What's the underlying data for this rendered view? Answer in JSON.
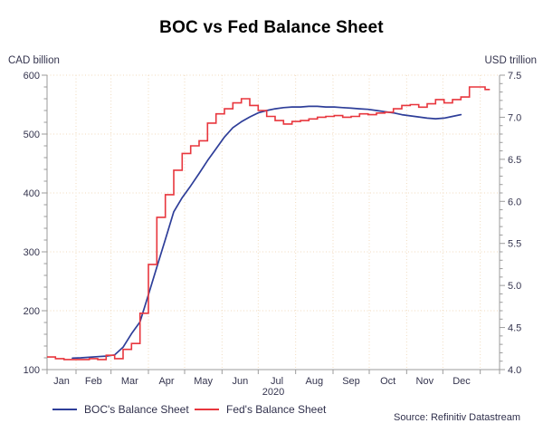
{
  "title": "BOC vs Fed Balance Sheet",
  "left_axis": {
    "label": "CAD billion",
    "min": 100,
    "max": 600,
    "major_step": 100,
    "minor_step": 20
  },
  "right_axis": {
    "label": "USD trillion",
    "min": 4.0,
    "max": 7.5,
    "major_step": 0.5,
    "minor_step": 0.1
  },
  "x_axis": {
    "months": [
      "Jan",
      "Feb",
      "Mar",
      "Apr",
      "May",
      "Jun",
      "Jul",
      "Aug",
      "Sep",
      "Oct",
      "Nov",
      "Dec"
    ],
    "year": "2020"
  },
  "legend": [
    {
      "label": "BOC's Balance Sheet",
      "color": "#2e3e99"
    },
    {
      "label": "Fed's Balance Sheet",
      "color": "#e8363d"
    }
  ],
  "source": "Source: Refinitiv Datastream",
  "colors": {
    "grid": "#f0dabd",
    "axis": "#9b9b9b",
    "tick_text": "#34344e",
    "title": "#000000",
    "background": "#ffffff"
  },
  "chart_data": {
    "type": "line",
    "title": "BOC vs Fed Balance Sheet",
    "x_unit": "day of year 2020 (weekly observations)",
    "x_range_days": [
      8,
      375
    ],
    "left_axis": {
      "label": "CAD billion",
      "range": [
        100,
        600
      ]
    },
    "right_axis": {
      "label": "USD trillion",
      "range": [
        4.0,
        7.5
      ]
    },
    "grid": true,
    "legend_position": "bottom",
    "series": [
      {
        "name": "BOC's Balance Sheet",
        "axis": "left",
        "unit": "CAD billion",
        "color": "#2e3e99",
        "line_style": "linear",
        "points": [
          [
            29,
            119.5
          ],
          [
            36,
            120
          ],
          [
            43,
            121
          ],
          [
            50,
            122
          ],
          [
            57,
            123
          ],
          [
            64,
            125
          ],
          [
            71,
            138
          ],
          [
            78,
            161
          ],
          [
            85,
            181
          ],
          [
            92,
            227
          ],
          [
            99,
            274
          ],
          [
            106,
            321
          ],
          [
            113,
            368
          ],
          [
            120,
            392
          ],
          [
            127,
            412
          ],
          [
            134,
            433
          ],
          [
            141,
            455
          ],
          [
            148,
            475
          ],
          [
            155,
            495
          ],
          [
            162,
            511
          ],
          [
            169,
            521
          ],
          [
            176,
            529
          ],
          [
            183,
            536
          ],
          [
            190,
            540
          ],
          [
            197,
            543
          ],
          [
            204,
            545
          ],
          [
            211,
            546
          ],
          [
            218,
            546
          ],
          [
            225,
            547
          ],
          [
            232,
            547
          ],
          [
            239,
            546
          ],
          [
            246,
            546
          ],
          [
            253,
            545
          ],
          [
            260,
            544
          ],
          [
            267,
            543
          ],
          [
            274,
            542
          ],
          [
            281,
            540
          ],
          [
            288,
            538
          ],
          [
            295,
            536
          ],
          [
            302,
            533
          ],
          [
            309,
            531
          ],
          [
            316,
            529
          ],
          [
            323,
            527
          ],
          [
            330,
            526
          ],
          [
            337,
            527
          ],
          [
            344,
            530
          ],
          [
            351,
            533
          ]
        ]
      },
      {
        "name": "Fed's Balance Sheet",
        "axis": "right",
        "unit": "USD trillion",
        "color": "#e8363d",
        "line_style": "step-after",
        "points": [
          [
            8,
            4.15
          ],
          [
            15,
            4.13
          ],
          [
            22,
            4.12
          ],
          [
            29,
            4.12
          ],
          [
            36,
            4.12
          ],
          [
            43,
            4.13
          ],
          [
            50,
            4.12
          ],
          [
            57,
            4.17
          ],
          [
            64,
            4.13
          ],
          [
            71,
            4.24
          ],
          [
            78,
            4.31
          ],
          [
            85,
            4.67
          ],
          [
            92,
            5.25
          ],
          [
            99,
            5.81
          ],
          [
            106,
            6.08
          ],
          [
            113,
            6.37
          ],
          [
            120,
            6.57
          ],
          [
            127,
            6.66
          ],
          [
            134,
            6.72
          ],
          [
            141,
            6.93
          ],
          [
            148,
            7.04
          ],
          [
            155,
            7.1
          ],
          [
            162,
            7.17
          ],
          [
            169,
            7.22
          ],
          [
            176,
            7.14
          ],
          [
            183,
            7.08
          ],
          [
            190,
            7.01
          ],
          [
            197,
            6.96
          ],
          [
            204,
            6.92
          ],
          [
            211,
            6.95
          ],
          [
            218,
            6.96
          ],
          [
            225,
            6.98
          ],
          [
            232,
            7.0
          ],
          [
            239,
            7.01
          ],
          [
            246,
            7.02
          ],
          [
            253,
            7.0
          ],
          [
            260,
            7.01
          ],
          [
            267,
            7.04
          ],
          [
            274,
            7.03
          ],
          [
            281,
            7.05
          ],
          [
            288,
            7.06
          ],
          [
            295,
            7.1
          ],
          [
            302,
            7.14
          ],
          [
            309,
            7.15
          ],
          [
            316,
            7.12
          ],
          [
            323,
            7.16
          ],
          [
            330,
            7.21
          ],
          [
            337,
            7.17
          ],
          [
            344,
            7.21
          ],
          [
            351,
            7.24
          ],
          [
            358,
            7.36
          ],
          [
            371,
            7.33
          ],
          [
            375,
            7.33
          ]
        ]
      }
    ]
  }
}
